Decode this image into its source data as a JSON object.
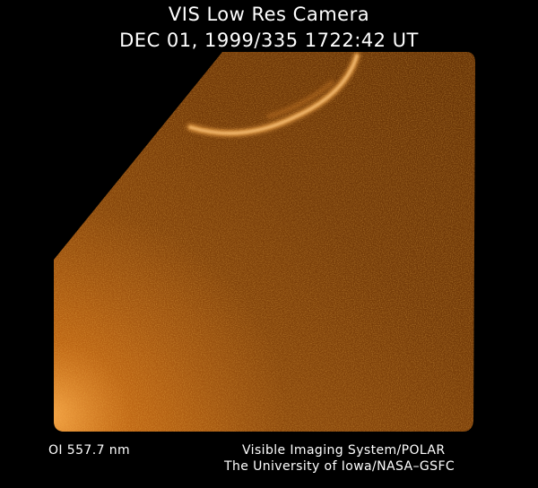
{
  "header": {
    "line1": "VIS Low Res Camera",
    "line2": "DEC 01, 1999/335 1722:42 UT"
  },
  "footer": {
    "wavelength": "OI  557.7 nm",
    "credit_line1": "Visible Imaging System/POLAR",
    "credit_line2": "The University of Iowa/NASA–GSFC"
  },
  "colors": {
    "background": "#000000",
    "glow_bright": "#ffa040",
    "glow_mid": "#a85a12",
    "glow_dark": "#6a3408",
    "text": "#ffffff"
  }
}
